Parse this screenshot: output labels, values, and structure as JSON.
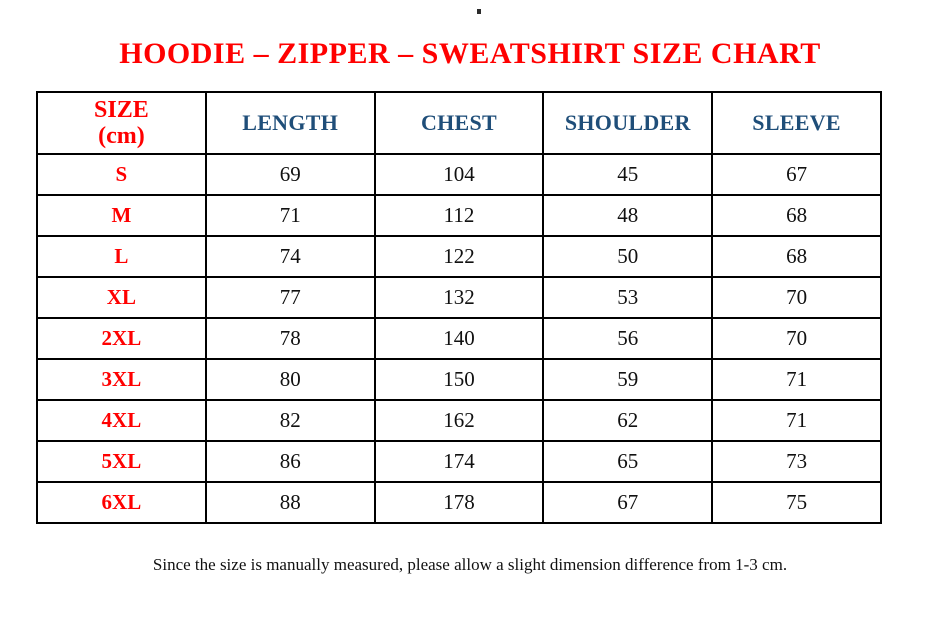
{
  "page": {
    "stray_dot_glyph": ".",
    "title": "HOODIE – ZIPPER – SWEATSHIRT SIZE CHART",
    "footer_note": "Since the size is manually measured, please allow a slight dimension difference from 1-3 cm."
  },
  "colors": {
    "title_red": "#ff0000",
    "size_label_red": "#ff0000",
    "header_blue": "#1f4e79",
    "value_black": "#111111",
    "border_black": "#000000",
    "background": "#ffffff"
  },
  "table": {
    "unit": "cm",
    "header": {
      "size_line1": "SIZE",
      "size_line2": "(cm)",
      "length": "LENGTH",
      "chest": "CHEST",
      "shoulder": "SHOULDER",
      "sleeve": "SLEEVE"
    },
    "rows": [
      {
        "size": "S",
        "length": "69",
        "chest": "104",
        "shoulder": "45",
        "sleeve": "67"
      },
      {
        "size": "M",
        "length": "71",
        "chest": "112",
        "shoulder": "48",
        "sleeve": "68"
      },
      {
        "size": "L",
        "length": "74",
        "chest": "122",
        "shoulder": "50",
        "sleeve": "68"
      },
      {
        "size": "XL",
        "length": "77",
        "chest": "132",
        "shoulder": "53",
        "sleeve": "70"
      },
      {
        "size": "2XL",
        "length": "78",
        "chest": "140",
        "shoulder": "56",
        "sleeve": "70"
      },
      {
        "size": "3XL",
        "length": "80",
        "chest": "150",
        "shoulder": "59",
        "sleeve": "71"
      },
      {
        "size": "4XL",
        "length": "82",
        "chest": "162",
        "shoulder": "62",
        "sleeve": "71"
      },
      {
        "size": "5XL",
        "length": "86",
        "chest": "174",
        "shoulder": "65",
        "sleeve": "73"
      },
      {
        "size": "6XL",
        "length": "88",
        "chest": "178",
        "shoulder": "67",
        "sleeve": "75"
      }
    ]
  }
}
